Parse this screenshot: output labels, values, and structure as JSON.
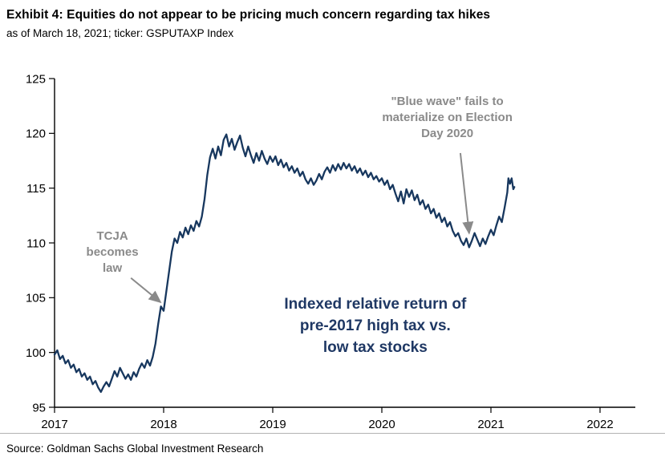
{
  "header": {
    "title": "Exhibit 4: Equities do not appear to be pricing much concern regarding tax hikes",
    "subtitle": "as of March 18, 2021; ticker: GSPUTAXP Index"
  },
  "footer": {
    "source": "Source: Goldman Sachs Global Investment Research"
  },
  "colors": {
    "line": "#17375e",
    "axis": "#000000",
    "annotation_text": "#8a8a8a",
    "center_text": "#1f3864",
    "rule": "#b3b3b3"
  },
  "chart_data": {
    "type": "line",
    "title": "Exhibit 4: Equities do not appear to be pricing much concern regarding tax hikes",
    "subtitle": "as of March 18, 2021; ticker: GSPUTAXP Index",
    "xlabel": "",
    "ylabel": "",
    "xlim": [
      2017,
      2022
    ],
    "ylim": [
      95,
      125
    ],
    "xticks": [
      2017,
      2018,
      2019,
      2020,
      2021,
      2022
    ],
    "yticks": [
      95,
      100,
      105,
      110,
      115,
      120,
      125
    ],
    "grid": false,
    "legend": false,
    "series": [
      {
        "name": "GSPUTAXP Index",
        "points": [
          [
            2017.0,
            99.8
          ],
          [
            2017.025,
            100.2
          ],
          [
            2017.05,
            99.4
          ],
          [
            2017.075,
            99.7
          ],
          [
            2017.1,
            99.0
          ],
          [
            2017.125,
            99.3
          ],
          [
            2017.15,
            98.6
          ],
          [
            2017.175,
            98.9
          ],
          [
            2017.2,
            98.2
          ],
          [
            2017.225,
            98.5
          ],
          [
            2017.25,
            97.8
          ],
          [
            2017.275,
            98.1
          ],
          [
            2017.3,
            97.5
          ],
          [
            2017.325,
            97.8
          ],
          [
            2017.35,
            97.1
          ],
          [
            2017.375,
            97.4
          ],
          [
            2017.4,
            96.8
          ],
          [
            2017.425,
            96.4
          ],
          [
            2017.45,
            96.9
          ],
          [
            2017.475,
            97.3
          ],
          [
            2017.5,
            96.9
          ],
          [
            2017.525,
            97.6
          ],
          [
            2017.55,
            98.3
          ],
          [
            2017.575,
            97.8
          ],
          [
            2017.6,
            98.6
          ],
          [
            2017.625,
            98.1
          ],
          [
            2017.65,
            97.6
          ],
          [
            2017.675,
            98.0
          ],
          [
            2017.7,
            97.5
          ],
          [
            2017.725,
            98.2
          ],
          [
            2017.75,
            97.8
          ],
          [
            2017.775,
            98.5
          ],
          [
            2017.8,
            99.0
          ],
          [
            2017.825,
            98.6
          ],
          [
            2017.85,
            99.3
          ],
          [
            2017.875,
            98.8
          ],
          [
            2017.9,
            99.6
          ],
          [
            2017.925,
            100.8
          ],
          [
            2017.95,
            102.6
          ],
          [
            2017.975,
            104.2
          ],
          [
            2018.0,
            103.8
          ],
          [
            2018.025,
            105.6
          ],
          [
            2018.05,
            107.4
          ],
          [
            2018.075,
            109.2
          ],
          [
            2018.1,
            110.4
          ],
          [
            2018.125,
            110.0
          ],
          [
            2018.15,
            111.0
          ],
          [
            2018.175,
            110.5
          ],
          [
            2018.2,
            111.4
          ],
          [
            2018.225,
            110.8
          ],
          [
            2018.25,
            111.6
          ],
          [
            2018.275,
            111.1
          ],
          [
            2018.3,
            112.0
          ],
          [
            2018.325,
            111.5
          ],
          [
            2018.35,
            112.4
          ],
          [
            2018.375,
            114.0
          ],
          [
            2018.4,
            116.2
          ],
          [
            2018.425,
            117.8
          ],
          [
            2018.45,
            118.6
          ],
          [
            2018.475,
            117.7
          ],
          [
            2018.5,
            118.8
          ],
          [
            2018.525,
            118.0
          ],
          [
            2018.55,
            119.4
          ],
          [
            2018.575,
            119.9
          ],
          [
            2018.6,
            118.8
          ],
          [
            2018.625,
            119.5
          ],
          [
            2018.65,
            118.5
          ],
          [
            2018.675,
            119.2
          ],
          [
            2018.7,
            119.8
          ],
          [
            2018.725,
            118.7
          ],
          [
            2018.75,
            117.9
          ],
          [
            2018.775,
            118.8
          ],
          [
            2018.8,
            118.0
          ],
          [
            2018.825,
            117.3
          ],
          [
            2018.85,
            118.2
          ],
          [
            2018.875,
            117.5
          ],
          [
            2018.9,
            118.4
          ],
          [
            2018.925,
            117.7
          ],
          [
            2018.95,
            117.2
          ],
          [
            2018.975,
            117.9
          ],
          [
            2019.0,
            117.4
          ],
          [
            2019.025,
            117.9
          ],
          [
            2019.05,
            117.1
          ],
          [
            2019.075,
            117.6
          ],
          [
            2019.1,
            116.9
          ],
          [
            2019.125,
            117.3
          ],
          [
            2019.15,
            116.6
          ],
          [
            2019.175,
            117.0
          ],
          [
            2019.2,
            116.4
          ],
          [
            2019.225,
            116.8
          ],
          [
            2019.25,
            116.1
          ],
          [
            2019.275,
            116.5
          ],
          [
            2019.3,
            115.8
          ],
          [
            2019.325,
            115.4
          ],
          [
            2019.35,
            115.9
          ],
          [
            2019.375,
            115.3
          ],
          [
            2019.4,
            115.7
          ],
          [
            2019.425,
            116.3
          ],
          [
            2019.45,
            115.8
          ],
          [
            2019.475,
            116.5
          ],
          [
            2019.5,
            116.9
          ],
          [
            2019.525,
            116.4
          ],
          [
            2019.55,
            117.1
          ],
          [
            2019.575,
            116.6
          ],
          [
            2019.6,
            117.2
          ],
          [
            2019.625,
            116.7
          ],
          [
            2019.65,
            117.3
          ],
          [
            2019.675,
            116.8
          ],
          [
            2019.7,
            117.2
          ],
          [
            2019.725,
            116.6
          ],
          [
            2019.75,
            117.0
          ],
          [
            2019.775,
            116.4
          ],
          [
            2019.8,
            116.8
          ],
          [
            2019.825,
            116.2
          ],
          [
            2019.85,
            116.6
          ],
          [
            2019.875,
            116.0
          ],
          [
            2019.9,
            116.4
          ],
          [
            2019.925,
            115.8
          ],
          [
            2019.95,
            116.1
          ],
          [
            2019.975,
            115.6
          ],
          [
            2020.0,
            115.9
          ],
          [
            2020.025,
            115.3
          ],
          [
            2020.05,
            115.7
          ],
          [
            2020.075,
            114.9
          ],
          [
            2020.1,
            115.3
          ],
          [
            2020.125,
            114.5
          ],
          [
            2020.15,
            113.8
          ],
          [
            2020.175,
            114.7
          ],
          [
            2020.2,
            113.6
          ],
          [
            2020.225,
            114.9
          ],
          [
            2020.25,
            114.2
          ],
          [
            2020.275,
            114.8
          ],
          [
            2020.3,
            113.9
          ],
          [
            2020.325,
            114.4
          ],
          [
            2020.35,
            113.5
          ],
          [
            2020.375,
            113.9
          ],
          [
            2020.4,
            113.1
          ],
          [
            2020.425,
            113.5
          ],
          [
            2020.45,
            112.7
          ],
          [
            2020.475,
            113.1
          ],
          [
            2020.5,
            112.3
          ],
          [
            2020.525,
            112.7
          ],
          [
            2020.55,
            111.9
          ],
          [
            2020.575,
            112.3
          ],
          [
            2020.6,
            111.5
          ],
          [
            2020.625,
            111.9
          ],
          [
            2020.65,
            111.1
          ],
          [
            2020.675,
            110.6
          ],
          [
            2020.7,
            110.9
          ],
          [
            2020.725,
            110.2
          ],
          [
            2020.75,
            109.8
          ],
          [
            2020.775,
            110.4
          ],
          [
            2020.8,
            109.6
          ],
          [
            2020.825,
            110.2
          ],
          [
            2020.85,
            110.9
          ],
          [
            2020.875,
            110.3
          ],
          [
            2020.9,
            109.7
          ],
          [
            2020.925,
            110.4
          ],
          [
            2020.95,
            109.9
          ],
          [
            2020.975,
            110.6
          ],
          [
            2021.0,
            111.2
          ],
          [
            2021.025,
            110.7
          ],
          [
            2021.05,
            111.6
          ],
          [
            2021.075,
            112.4
          ],
          [
            2021.1,
            111.9
          ],
          [
            2021.125,
            113.2
          ],
          [
            2021.15,
            114.6
          ],
          [
            2021.16,
            115.9
          ],
          [
            2021.175,
            115.4
          ],
          [
            2021.19,
            115.9
          ],
          [
            2021.205,
            114.9
          ],
          [
            2021.215,
            115.1
          ]
        ]
      }
    ],
    "annotations": [
      {
        "id": "tcja",
        "style": "gray",
        "x": 2017.53,
        "y": 110.3,
        "line_height": 20,
        "lines": [
          "TCJA",
          "becomes",
          "law"
        ],
        "arrow": {
          "from": [
            2017.7,
            106.8
          ],
          "to": [
            2017.97,
            104.6
          ]
        }
      },
      {
        "id": "blue-wave",
        "style": "gray",
        "x": 2020.6,
        "y": 122.6,
        "line_height": 20,
        "lines": [
          "\"Blue wave\" fails to",
          "materialize on Election",
          "Day 2020"
        ],
        "arrow": {
          "from": [
            2020.72,
            118.2
          ],
          "to": [
            2020.8,
            110.9
          ]
        }
      },
      {
        "id": "center-label",
        "style": "center",
        "x": 2019.94,
        "y": 104.0,
        "line_height": 27,
        "lines": [
          "Indexed relative return of",
          "pre-2017 high tax vs.",
          "low tax stocks"
        ]
      }
    ]
  }
}
